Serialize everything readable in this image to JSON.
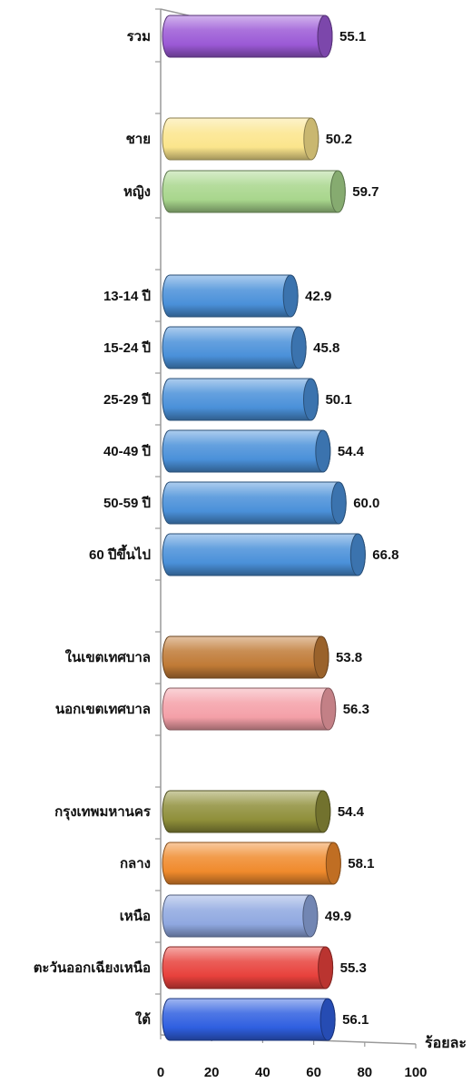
{
  "chart_data": {
    "type": "bar",
    "orientation": "horizontal",
    "categories": [
      "รวม",
      "ชาย",
      "หญิง",
      "13-14 ปี",
      "15-24 ปี",
      "25-29 ปี",
      "40-49 ปี",
      "50-59 ปี",
      "60 ปีขึ้นไป",
      "ในเขตเทศบาล",
      "นอกเขตเทศบาล",
      "กรุงเทพมหานคร",
      "กลาง",
      "เหนือ",
      "ตะวันออกเฉียงเหนือ",
      "ใต้"
    ],
    "values": [
      55.1,
      50.2,
      59.7,
      42.9,
      45.8,
      50.1,
      54.4,
      60.0,
      66.8,
      53.8,
      56.3,
      54.4,
      58.1,
      49.9,
      55.3,
      56.1
    ],
    "value_labels": [
      "55.1",
      "50.2",
      "59.7",
      "42.9",
      "45.8",
      "50.1",
      "54.4",
      "60.0",
      "66.8",
      "53.8",
      "56.3",
      "54.4",
      "58.1",
      "49.9",
      "55.3",
      "56.1"
    ],
    "colors": [
      "#9b59d6",
      "#fbe58c",
      "#a8d68c",
      "#4a90d9",
      "#4a90d9",
      "#4a90d9",
      "#4a90d9",
      "#4a90d9",
      "#4a90d9",
      "#c07a36",
      "#f4a0a8",
      "#8f8f3a",
      "#f08a2c",
      "#8fa8e0",
      "#e8413c",
      "#2f5fe0"
    ],
    "groups": [
      [
        0
      ],
      [
        1,
        2
      ],
      [
        3,
        4,
        5,
        6,
        7,
        8
      ],
      [
        9,
        10
      ],
      [
        11,
        12,
        13,
        14,
        15
      ]
    ],
    "xlim": [
      0,
      100
    ],
    "xticks": [
      "0",
      "20",
      "40",
      "60",
      "80",
      "100"
    ],
    "xlabel": "ร้อยละ",
    "ylabel": "",
    "title": "",
    "grid": false,
    "style": "3d-cylinder"
  }
}
